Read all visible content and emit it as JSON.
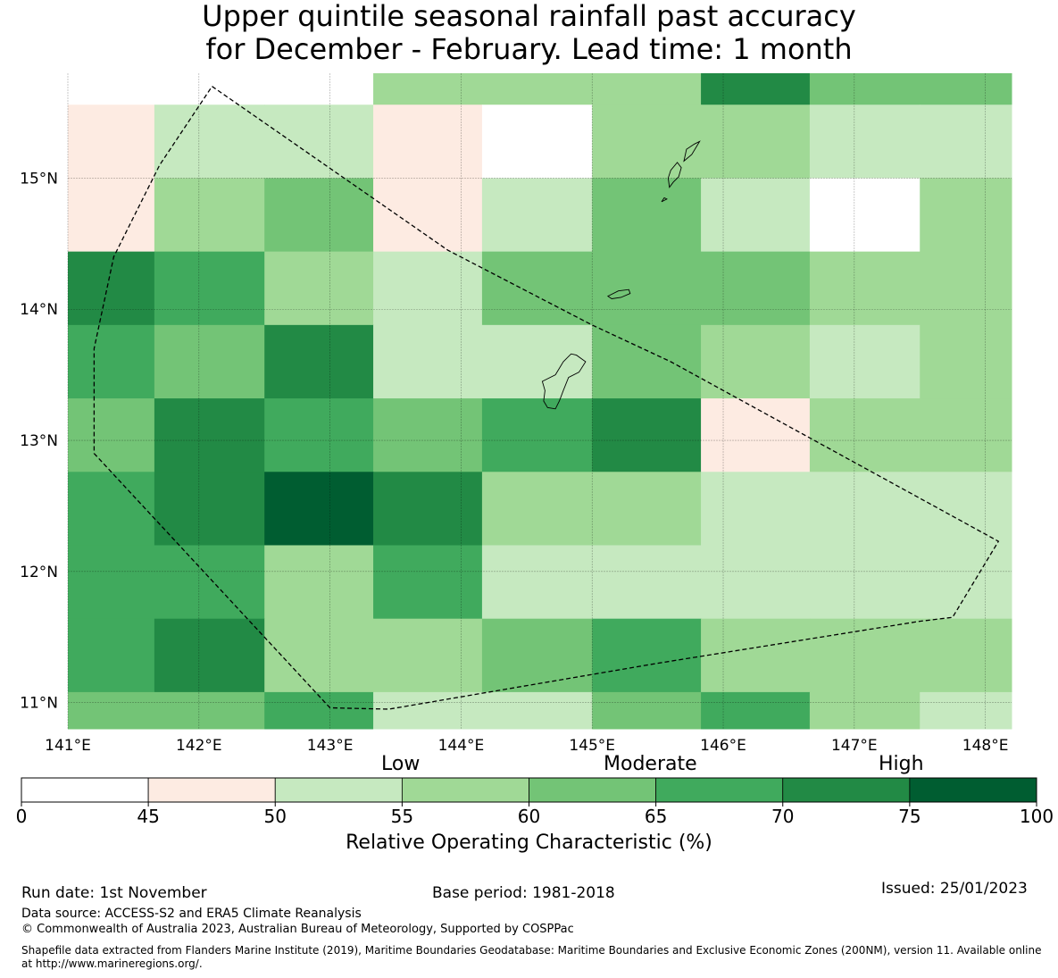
{
  "title": {
    "line1": "Upper quintile seasonal rainfall past accuracy",
    "line2": "for December - February. Lead time: 1 month"
  },
  "map": {
    "lon_ticks": [
      {
        "value": 141,
        "label": "141°E"
      },
      {
        "value": 142,
        "label": "142°E"
      },
      {
        "value": 143,
        "label": "143°E"
      },
      {
        "value": 144,
        "label": "144°E"
      },
      {
        "value": 145,
        "label": "145°E"
      },
      {
        "value": 146,
        "label": "146°E"
      },
      {
        "value": 147,
        "label": "147°E"
      },
      {
        "value": 148,
        "label": "148°E"
      }
    ],
    "lat_ticks": [
      {
        "value": 15,
        "label": "15°N"
      },
      {
        "value": 14,
        "label": "14°N"
      },
      {
        "value": 13,
        "label": "13°N"
      },
      {
        "value": 12,
        "label": "12°N"
      },
      {
        "value": 11,
        "label": "11°N"
      }
    ],
    "lon_range": [
      141.0,
      148.2
    ],
    "lat_range": [
      10.8,
      15.8
    ],
    "col_edges_lon": [
      141.0,
      141.66,
      142.5,
      143.33,
      144.16,
      145.0,
      145.83,
      146.66,
      147.5,
      148.2
    ],
    "row_edges_lat": [
      15.8,
      15.56,
      15.0,
      14.44,
      13.88,
      13.32,
      12.76,
      12.2,
      11.64,
      11.08,
      10.8
    ],
    "grid_values_pct": [
      [
        null,
        null,
        null,
        57,
        57,
        57,
        72,
        62,
        62
      ],
      [
        47,
        52,
        52,
        47,
        null,
        57,
        57,
        52,
        52
      ],
      [
        47,
        57,
        62,
        47,
        52,
        62,
        52,
        null,
        57
      ],
      [
        72,
        67,
        57,
        52,
        62,
        62,
        62,
        57,
        57
      ],
      [
        67,
        62,
        72,
        52,
        52,
        62,
        57,
        52,
        57
      ],
      [
        62,
        72,
        67,
        62,
        67,
        72,
        47,
        57,
        57
      ],
      [
        67,
        72,
        77,
        72,
        57,
        57,
        52,
        52,
        52
      ],
      [
        67,
        67,
        57,
        67,
        52,
        52,
        52,
        52,
        52
      ],
      [
        67,
        72,
        57,
        57,
        62,
        67,
        57,
        57,
        57
      ],
      [
        62,
        62,
        67,
        52,
        52,
        62,
        67,
        57,
        52
      ]
    ],
    "eez_boundary": [
      [
        142.1,
        15.7
      ],
      [
        143.9,
        14.45
      ],
      [
        145.0,
        13.88
      ],
      [
        145.6,
        13.6
      ],
      [
        148.1,
        12.23
      ],
      [
        147.75,
        11.65
      ],
      [
        147.5,
        11.62
      ],
      [
        145.5,
        11.3
      ],
      [
        143.45,
        10.95
      ],
      [
        143.0,
        10.96
      ],
      [
        141.2,
        12.9
      ],
      [
        141.2,
        13.1
      ],
      [
        141.2,
        13.7
      ],
      [
        141.35,
        14.4
      ],
      [
        141.7,
        15.1
      ],
      [
        142.1,
        15.7
      ]
    ],
    "islands": [
      [
        [
          144.62,
          13.45
        ],
        [
          144.72,
          13.5
        ],
        [
          144.78,
          13.6
        ],
        [
          144.84,
          13.66
        ],
        [
          144.88,
          13.65
        ],
        [
          144.95,
          13.6
        ],
        [
          144.9,
          13.52
        ],
        [
          144.82,
          13.48
        ],
        [
          144.78,
          13.38
        ],
        [
          144.75,
          13.3
        ],
        [
          144.72,
          13.24
        ],
        [
          144.66,
          13.25
        ],
        [
          144.63,
          13.3
        ],
        [
          144.64,
          13.38
        ],
        [
          144.62,
          13.45
        ]
      ],
      [
        [
          145.12,
          14.1
        ],
        [
          145.2,
          14.14
        ],
        [
          145.28,
          14.15
        ],
        [
          145.29,
          14.12
        ],
        [
          145.22,
          14.09
        ],
        [
          145.15,
          14.08
        ],
        [
          145.12,
          14.1
        ]
      ],
      [
        [
          145.59,
          14.93
        ],
        [
          145.62,
          14.97
        ],
        [
          145.66,
          15.01
        ],
        [
          145.68,
          15.08
        ],
        [
          145.65,
          15.12
        ],
        [
          145.6,
          15.06
        ],
        [
          145.58,
          15.0
        ],
        [
          145.59,
          14.93
        ]
      ],
      [
        [
          145.7,
          15.13
        ],
        [
          145.76,
          15.18
        ],
        [
          145.82,
          15.28
        ],
        [
          145.78,
          15.26
        ],
        [
          145.72,
          15.22
        ],
        [
          145.7,
          15.13
        ]
      ],
      [
        [
          145.53,
          14.82
        ],
        [
          145.57,
          14.84
        ],
        [
          145.55,
          14.85
        ],
        [
          145.53,
          14.82
        ]
      ]
    ]
  },
  "colorbar": {
    "labels": [
      "0",
      "45",
      "50",
      "55",
      "60",
      "65",
      "70",
      "75",
      "100"
    ],
    "bounds": [
      0,
      45,
      50,
      55,
      60,
      65,
      70,
      75,
      100
    ],
    "colors": [
      "#ffffff",
      "#fdebe2",
      "#c6e9c0",
      "#a0d996",
      "#73c476",
      "#40aa5d",
      "#228a45",
      "#005d31"
    ],
    "category_low": "Low",
    "category_moderate": "Moderate",
    "category_high": "High",
    "axis_title": "Relative Operating Characteristic (%)"
  },
  "footer": {
    "run_date": "Run date: 1st November",
    "base_period": "Base period: 1981-2018",
    "issued": "Issued: 25/01/2023",
    "data_source": "Data source: ACCESS-S2 and ERA5 Climate Reanalysis",
    "copyright": "© Commonwealth of Australia 2023, Australian Bureau of Meteorology, Supported by COSPPac",
    "shapefile_line1": "Shapefile data extracted from Flanders Marine Institute (2019), Maritime Boundaries Geodatabase: Maritime Boundaries and Exclusive Economic Zones (200NM), version 11. Available online",
    "shapefile_line2": "at http://www.marineregions.org/."
  }
}
